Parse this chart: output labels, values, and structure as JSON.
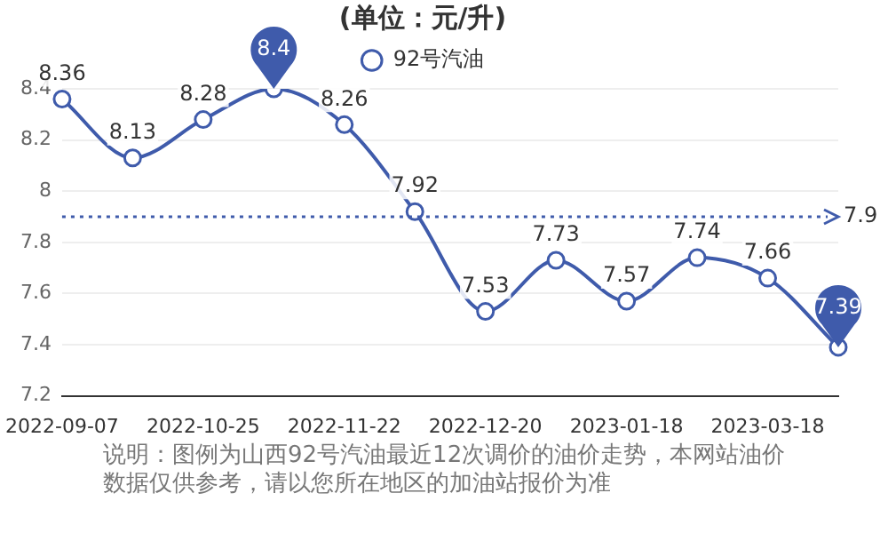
{
  "chart_data": {
    "type": "line",
    "title": "(单位：元/升)",
    "categories": [
      "2022-09-07",
      null,
      "2022-10-25",
      null,
      "2022-11-22",
      null,
      "2022-12-20",
      null,
      "2023-01-18",
      null,
      "2023-03-18",
      null
    ],
    "series": [
      {
        "name": "92号汽油",
        "color": "#3f5bab",
        "values": [
          8.36,
          8.13,
          8.28,
          8.4,
          8.26,
          7.92,
          7.53,
          7.73,
          7.57,
          7.74,
          7.66,
          7.39
        ]
      }
    ],
    "ylim": [
      7.2,
      8.4
    ],
    "yticks": [
      7.2,
      7.4,
      7.6,
      7.8,
      8,
      8.2,
      8.4
    ],
    "grid": "y",
    "legend": "top",
    "marker": "circle",
    "line_style": "solid",
    "data_labels": true,
    "ref_lines": [
      {
        "axis": "y",
        "value": 7.9,
        "label": "7.9",
        "color": "#3f5bab",
        "line_style": "dotted"
      }
    ],
    "annotations": [
      "说明：图例为山西92号汽油最近12次调价的油价走势，本网站油价数据仅供参考，请以您所在地区的加油站报价为准"
    ]
  }
}
